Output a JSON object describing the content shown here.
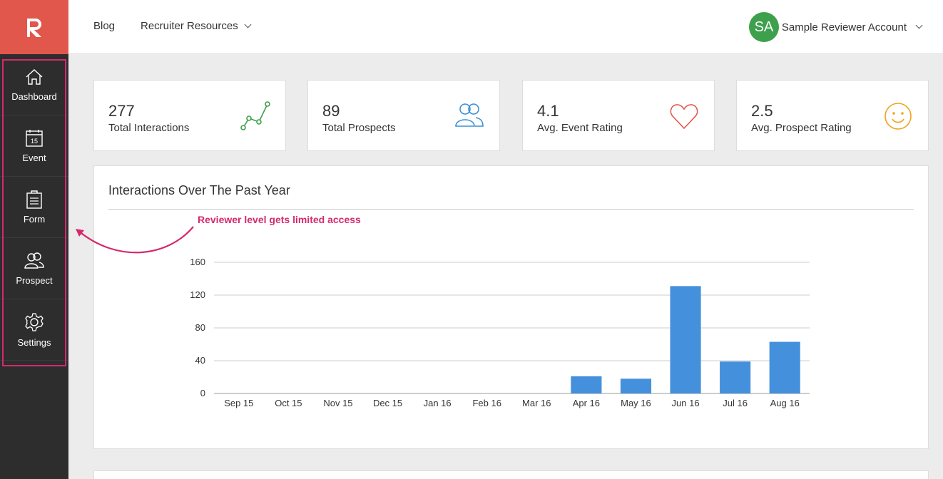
{
  "topbar": {
    "blog_label": "Blog",
    "resources_label": "Recruiter Resources",
    "account_initials": "SA",
    "account_name": "Sample Reviewer Account"
  },
  "sidebar": {
    "items": [
      {
        "label": "Dashboard",
        "icon": "home-icon"
      },
      {
        "label": "Event",
        "icon": "calendar-icon",
        "icon_text": "15"
      },
      {
        "label": "Form",
        "icon": "clipboard-icon"
      },
      {
        "label": "Prospect",
        "icon": "people-icon"
      },
      {
        "label": "Settings",
        "icon": "gear-icon"
      }
    ]
  },
  "stats": [
    {
      "value": "277",
      "label": "Total Interactions",
      "icon": "trend-line-icon",
      "color": "#3da04c"
    },
    {
      "value": "89",
      "label": "Total Prospects",
      "icon": "people-icon",
      "color": "#3a8fd6"
    },
    {
      "value": "4.1",
      "label": "Avg. Event Rating",
      "icon": "heart-icon",
      "color": "#e2574c"
    },
    {
      "value": "2.5",
      "label": "Avg. Prospect Rating",
      "icon": "smiley-icon",
      "color": "#f0a21e"
    }
  ],
  "annotation": {
    "text": "Reviewer level gets limited access",
    "color": "#d6296d"
  },
  "chart": {
    "title": "Interactions Over The Past Year"
  },
  "chart_data": {
    "type": "bar",
    "categories": [
      "Sep 15",
      "Oct 15",
      "Nov 15",
      "Dec 15",
      "Jan 16",
      "Feb 16",
      "Mar 16",
      "Apr 16",
      "May 16",
      "Jun 16",
      "Jul 16",
      "Aug 16"
    ],
    "values": [
      0,
      0,
      0,
      0,
      0,
      0,
      0,
      21,
      18,
      131,
      39,
      63
    ],
    "yticks": [
      0,
      40,
      80,
      120,
      160
    ],
    "ylim": [
      0,
      160
    ],
    "grid": true,
    "color": "#4590dc"
  }
}
